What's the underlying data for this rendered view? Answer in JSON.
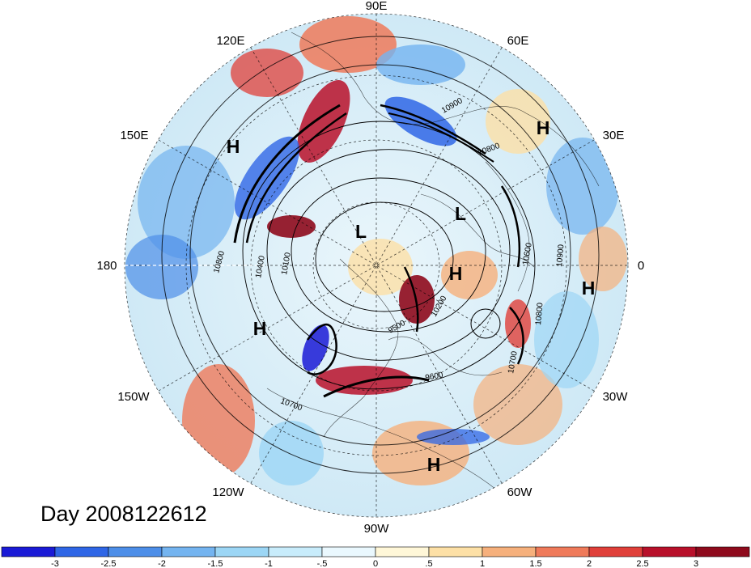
{
  "date_label": "Day 2008122612",
  "longitude_labels": [
    "90E",
    "60E",
    "30E",
    "0",
    "30W",
    "60W",
    "90W",
    "120W",
    "150W",
    "180",
    "150E",
    "120E"
  ],
  "pressure_centers": {
    "H_ne": "H",
    "H_e": "H",
    "H_center": "H",
    "H_nw": "H",
    "H_w": "H",
    "H_s": "H",
    "L_north": "L",
    "L_east": "L"
  },
  "contour_labels": [
    "10900",
    "10800",
    "10600",
    "10900",
    "10800",
    "10700",
    "10800",
    "10400",
    "10100",
    "9500",
    "10200",
    "9600",
    "10700"
  ],
  "colorbar": {
    "ticks": [
      "-3",
      "-2.5",
      "-2",
      "-1.5",
      "-1",
      "-.5",
      "0",
      ".5",
      "1",
      "1.5",
      "2",
      "2.5",
      "3"
    ],
    "colors": [
      "#1a1ad6",
      "#2f66e6",
      "#4d8ee8",
      "#74b4f0",
      "#9cd6f5",
      "#c8ecfb",
      "#eaf8fe",
      "#fff7d8",
      "#fde0a6",
      "#f6b07c",
      "#ef7a5a",
      "#e0403a",
      "#b8102a",
      "#8e0a1c"
    ]
  }
}
